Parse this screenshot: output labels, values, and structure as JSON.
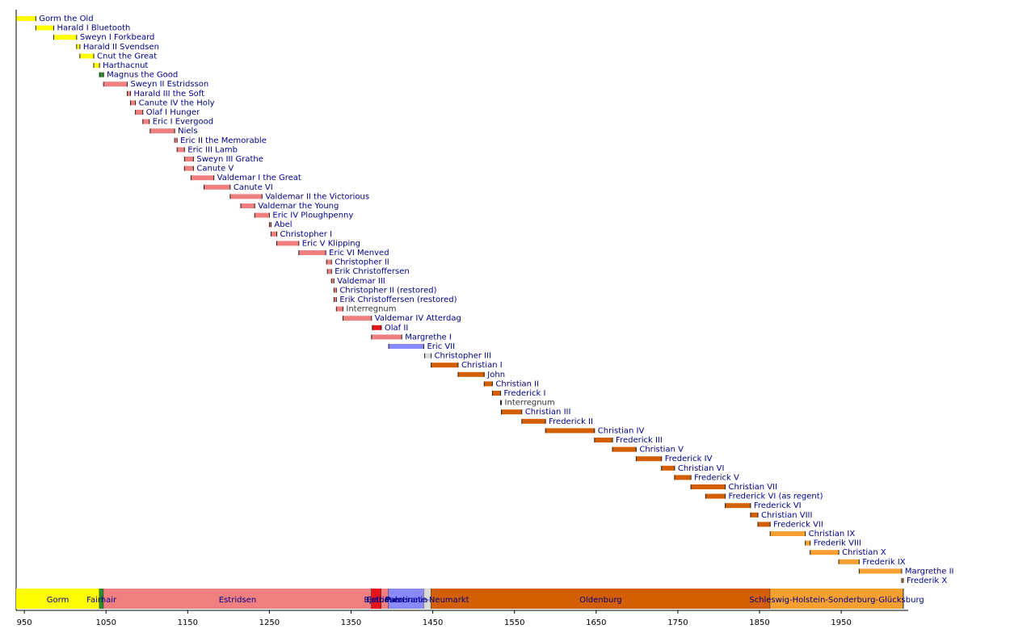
{
  "chart_data": {
    "type": "timeline",
    "xlim": [
      940,
      2030
    ],
    "xticks": [
      950,
      1050,
      1150,
      1250,
      1350,
      1450,
      1550,
      1650,
      1750,
      1850,
      1950
    ],
    "bars": [
      {
        "name": "Gorm the Old",
        "start": 940,
        "end": 964,
        "color": "#ffff00"
      },
      {
        "name": "Harald I Bluetooth",
        "start": 964,
        "end": 986,
        "color": "#ffff00"
      },
      {
        "name": "Sweyn I Forkbeard",
        "start": 986,
        "end": 1014,
        "color": "#ffff00"
      },
      {
        "name": "Harald II Svendsen",
        "start": 1014,
        "end": 1018,
        "color": "#ffff00"
      },
      {
        "name": "Cnut the Great",
        "start": 1018,
        "end": 1035,
        "color": "#ffff00"
      },
      {
        "name": "Harthacnut",
        "start": 1035,
        "end": 1042,
        "color": "#ffff00"
      },
      {
        "name": "Magnus the Good",
        "start": 1042,
        "end": 1047,
        "color": "#2e8b2e"
      },
      {
        "name": "Sweyn II Estridsson",
        "start": 1047,
        "end": 1076,
        "color": "#f08080"
      },
      {
        "name": "Harald III the Soft",
        "start": 1076,
        "end": 1080,
        "color": "#f08080"
      },
      {
        "name": "Canute IV the Holy",
        "start": 1080,
        "end": 1086,
        "color": "#f08080"
      },
      {
        "name": "Olaf I Hunger",
        "start": 1086,
        "end": 1095,
        "color": "#f08080"
      },
      {
        "name": "Eric I Evergood",
        "start": 1095,
        "end": 1103,
        "color": "#f08080"
      },
      {
        "name": "Niels",
        "start": 1104,
        "end": 1134,
        "color": "#f08080"
      },
      {
        "name": "Eric II the Memorable",
        "start": 1134,
        "end": 1137,
        "color": "#f08080"
      },
      {
        "name": "Eric III Lamb",
        "start": 1137,
        "end": 1146,
        "color": "#f08080"
      },
      {
        "name": "Sweyn III Grathe",
        "start": 1146,
        "end": 1157,
        "color": "#f08080"
      },
      {
        "name": "Canute V",
        "start": 1146,
        "end": 1157,
        "color": "#f08080"
      },
      {
        "name": "Valdemar I the Great",
        "start": 1154,
        "end": 1182,
        "color": "#f08080"
      },
      {
        "name": "Canute VI",
        "start": 1170,
        "end": 1202,
        "color": "#f08080"
      },
      {
        "name": "Valdemar II the Victorious",
        "start": 1202,
        "end": 1241,
        "color": "#f08080"
      },
      {
        "name": "Valdemar the Young",
        "start": 1215,
        "end": 1232,
        "color": "#f08080"
      },
      {
        "name": "Eric IV Ploughpenny",
        "start": 1232,
        "end": 1250,
        "color": "#f08080"
      },
      {
        "name": "Abel",
        "start": 1250,
        "end": 1252,
        "color": "#f08080"
      },
      {
        "name": "Christopher I",
        "start": 1252,
        "end": 1259,
        "color": "#f08080"
      },
      {
        "name": "Eric V Klipping",
        "start": 1259,
        "end": 1286,
        "color": "#f08080"
      },
      {
        "name": "Eric VI Menved",
        "start": 1286,
        "end": 1319,
        "color": "#f08080"
      },
      {
        "name": "Christopher II",
        "start": 1320,
        "end": 1326,
        "color": "#f08080"
      },
      {
        "name": "Erik Christoffersen",
        "start": 1321,
        "end": 1326,
        "color": "#f08080"
      },
      {
        "name": "Valdemar III",
        "start": 1326,
        "end": 1329,
        "color": "#f08080"
      },
      {
        "name": "Christopher II (restored)",
        "start": 1329,
        "end": 1332,
        "color": "#f08080"
      },
      {
        "name": "Erik Christoffersen (restored)",
        "start": 1329,
        "end": 1332,
        "color": "#f08080"
      },
      {
        "name": "Interregnum",
        "start": 1332,
        "end": 1340,
        "color": "#f08080",
        "text_color": "#333333"
      },
      {
        "name": "Valdemar IV Atterdag",
        "start": 1340,
        "end": 1375,
        "color": "#f08080"
      },
      {
        "name": "Olaf II",
        "start": 1376,
        "end": 1387,
        "color": "#e8141a"
      },
      {
        "name": "Margrethe I",
        "start": 1375,
        "end": 1412,
        "color": "#f08080"
      },
      {
        "name": "Eric VII",
        "start": 1396,
        "end": 1439,
        "color": "#8a8aff"
      },
      {
        "name": "Christopher III",
        "start": 1440,
        "end": 1448,
        "color": "#d8d8d8"
      },
      {
        "name": "Christian I",
        "start": 1448,
        "end": 1481,
        "color": "#d35f00"
      },
      {
        "name": "John",
        "start": 1481,
        "end": 1513,
        "color": "#d35f00"
      },
      {
        "name": "Christian II",
        "start": 1513,
        "end": 1523,
        "color": "#d35f00"
      },
      {
        "name": "Frederick I",
        "start": 1523,
        "end": 1533,
        "color": "#d35f00"
      },
      {
        "name": "Interregnum",
        "start": 1533,
        "end": 1534,
        "color": "#d35f00",
        "text_color": "#333333"
      },
      {
        "name": "Christian III",
        "start": 1534,
        "end": 1559,
        "color": "#d35f00"
      },
      {
        "name": "Frederick II",
        "start": 1559,
        "end": 1588,
        "color": "#d35f00"
      },
      {
        "name": "Christian IV",
        "start": 1588,
        "end": 1648,
        "color": "#d35f00"
      },
      {
        "name": "Frederick III",
        "start": 1648,
        "end": 1670,
        "color": "#d35f00"
      },
      {
        "name": "Christian V",
        "start": 1670,
        "end": 1699,
        "color": "#d35f00"
      },
      {
        "name": "Frederick IV",
        "start": 1699,
        "end": 1730,
        "color": "#d35f00"
      },
      {
        "name": "Christian VI",
        "start": 1730,
        "end": 1746,
        "color": "#d35f00"
      },
      {
        "name": "Frederick V",
        "start": 1746,
        "end": 1766,
        "color": "#d35f00"
      },
      {
        "name": "Christian VII",
        "start": 1766,
        "end": 1808,
        "color": "#d35f00"
      },
      {
        "name": "Frederick VI (as regent)",
        "start": 1784,
        "end": 1808,
        "color": "#d35f00"
      },
      {
        "name": "Frederick VI",
        "start": 1808,
        "end": 1839,
        "color": "#d35f00"
      },
      {
        "name": "Christian VIII",
        "start": 1839,
        "end": 1848,
        "color": "#d35f00"
      },
      {
        "name": "Frederick VII",
        "start": 1848,
        "end": 1863,
        "color": "#d35f00"
      },
      {
        "name": "Christian IX",
        "start": 1863,
        "end": 1906,
        "color": "#f5a030"
      },
      {
        "name": "Frederik VIII",
        "start": 1906,
        "end": 1912,
        "color": "#f5a030"
      },
      {
        "name": "Christian X",
        "start": 1912,
        "end": 1947,
        "color": "#f5a030"
      },
      {
        "name": "Frederik IX",
        "start": 1947,
        "end": 1972,
        "color": "#f5a030"
      },
      {
        "name": "Margrethe II",
        "start": 1972,
        "end": 2024,
        "color": "#f5a030"
      },
      {
        "name": "Frederik X",
        "start": 2024,
        "end": 2026,
        "color": "#f5a030"
      }
    ],
    "houses": [
      {
        "name": "Gorm",
        "start": 940,
        "end": 1042,
        "color": "#ffff00"
      },
      {
        "name": "Fairhair",
        "start": 1042,
        "end": 1047,
        "color": "#2e8b2e"
      },
      {
        "name": "Estridsen",
        "start": 1047,
        "end": 1375,
        "color": "#f08080"
      },
      {
        "name": "Bjelbo",
        "start": 1375,
        "end": 1387,
        "color": "#e8141a"
      },
      {
        "name": "Estridsen",
        "start": 1387,
        "end": 1396,
        "color": "#f08080"
      },
      {
        "name": "Pomerania",
        "start": 1396,
        "end": 1439,
        "color": "#8a8aff"
      },
      {
        "name": "Palatinate-Neumarkt",
        "start": 1439,
        "end": 1448,
        "color": "#d8d8d8"
      },
      {
        "name": "Oldenburg",
        "start": 1448,
        "end": 1863,
        "color": "#d35f00"
      },
      {
        "name": "Schleswig-Holstein-Sonderburg-Glücksburg",
        "start": 1863,
        "end": 2026,
        "color": "#f5a030"
      }
    ]
  }
}
